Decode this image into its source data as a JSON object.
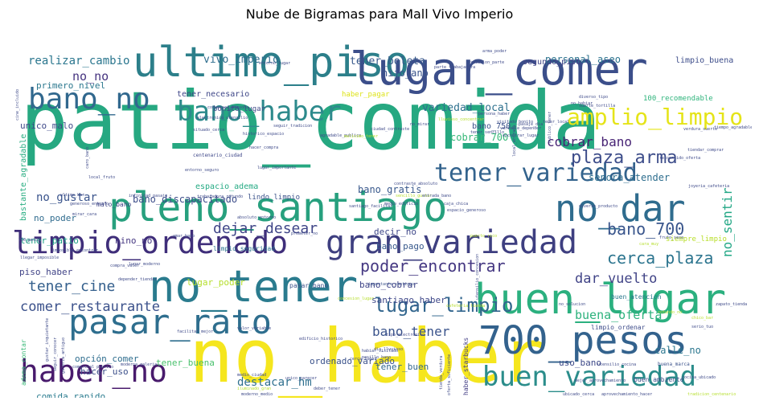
{
  "chart_data": {
    "type": "wordcloud",
    "title": "Nube de Bigramas para Mall Vivo Imperio",
    "colormap": [
      "#440154",
      "#482878",
      "#3e4a89",
      "#31688e",
      "#26828e",
      "#1f9e89",
      "#35b779",
      "#6ece58",
      "#b5de2b",
      "#fde725"
    ],
    "words": [
      {
        "text": "patio_comida",
        "weight": 100,
        "color": "#26a881"
      },
      {
        "text": "no_haber",
        "weight": 85,
        "color": "#f5e61e"
      },
      {
        "text": "lugar_comer",
        "weight": 62,
        "color": "#3b4e8a"
      },
      {
        "text": "ultimo_piso",
        "weight": 58,
        "color": "#2c7f8a"
      },
      {
        "text": "pleno_santiago",
        "weight": 55,
        "color": "#27a07e"
      },
      {
        "text": "no_tener",
        "weight": 55,
        "color": "#2a7b8e"
      },
      {
        "text": "buen_lugar",
        "weight": 52,
        "color": "#2bb07f"
      },
      {
        "text": "700_pesos",
        "weight": 48,
        "color": "#33628d"
      },
      {
        "text": "no_dar",
        "weight": 45,
        "color": "#2f6c8e"
      },
      {
        "text": "pasar_rato",
        "weight": 42,
        "color": "#2e6e8e"
      },
      {
        "text": "limpio_ordenado",
        "weight": 40,
        "color": "#3f2e7a"
      },
      {
        "text": "gran_variedad",
        "weight": 40,
        "color": "#3e3f80"
      },
      {
        "text": "bano_no",
        "weight": 36,
        "color": "#31688e"
      },
      {
        "text": "bano_haber",
        "weight": 36,
        "color": "#2d8a8c"
      },
      {
        "text": "haber_no",
        "weight": 36,
        "color": "#481a6c"
      },
      {
        "text": "buen_variedad",
        "weight": 35,
        "color": "#2b8d8b"
      },
      {
        "text": "tener_variedad",
        "weight": 30,
        "color": "#33638d"
      },
      {
        "text": "amplio_limpio",
        "weight": 28,
        "color": "#e5e419"
      },
      {
        "text": "lugar_limpio",
        "weight": 24,
        "color": "#32668e"
      },
      {
        "text": "plaza_arma",
        "weight": 22,
        "color": "#3d4d8a"
      },
      {
        "text": "bano_700",
        "weight": 20,
        "color": "#39558c"
      },
      {
        "text": "cerca_plaza",
        "weight": 20,
        "color": "#2b748e"
      },
      {
        "text": "poder_encontrar",
        "weight": 20,
        "color": "#453882"
      },
      {
        "text": "dejar_desear",
        "weight": 18,
        "color": "#404688"
      },
      {
        "text": "tener_cine",
        "weight": 18,
        "color": "#35608d"
      },
      {
        "text": "comer_restaurante",
        "weight": 17,
        "color": "#3b518b"
      },
      {
        "text": "dar_vuelto",
        "weight": 17,
        "color": "#414487"
      },
      {
        "text": "bano_tener",
        "weight": 16,
        "color": "#3a538b"
      },
      {
        "text": "cobrar_bano",
        "weight": 16,
        "color": "#482475"
      },
      {
        "text": "no_sentir",
        "weight": 16,
        "color": "#22a785"
      },
      {
        "text": "buena_oferta",
        "weight": 15,
        "color": "#2db27d"
      },
      {
        "text": "no_no",
        "weight": 15,
        "color": "#463480"
      },
      {
        "text": "realizar_cambio",
        "weight": 14,
        "color": "#2a768e"
      },
      {
        "text": "no_gustar",
        "weight": 14,
        "color": "#3a548c"
      },
      {
        "text": "destacar_hm",
        "weight": 14,
        "color": "#2e6f8e"
      },
      {
        "text": "tener_boleta",
        "weight": 13,
        "color": "#38598c"
      },
      {
        "text": "vivo_imperio",
        "weight": 13,
        "color": "#2e6d8e"
      },
      {
        "text": "variedad_local",
        "weight": 13,
        "color": "#2d708e"
      },
      {
        "text": "senora_atender",
        "weight": 12,
        "color": "#2e6e8e"
      },
      {
        "text": "bano_discapacitado",
        "weight": 12,
        "color": "#3d4e8a"
      },
      {
        "text": "bano_gratis",
        "weight": 12,
        "color": "#38588c"
      },
      {
        "text": "personal_aseo",
        "weight": 12,
        "color": "#2c738e"
      },
      {
        "text": "hijo_ano",
        "weight": 12,
        "color": "#3a548c"
      },
      {
        "text": "cobrar_700",
        "weight": 12,
        "color": "#37b878"
      },
      {
        "text": "calle_no",
        "weight": 12,
        "color": "#2a768e"
      },
      {
        "text": "tener_buena",
        "weight": 11,
        "color": "#4ac16d"
      },
      {
        "text": "hacer_uso",
        "weight": 11,
        "color": "#3c4f8a"
      },
      {
        "text": "opción_comer",
        "weight": 11,
        "color": "#2e6d8e"
      },
      {
        "text": "tener_buen",
        "weight": 11,
        "color": "#31678e"
      },
      {
        "text": "ordenado_variado",
        "weight": 11,
        "color": "#3b528b"
      },
      {
        "text": "uso_bano",
        "weight": 11,
        "color": "#3e4a89"
      },
      {
        "text": "nino_no",
        "weight": 11,
        "color": "#453781"
      },
      {
        "text": "decir_no",
        "weight": 11,
        "color": "#3f4889"
      },
      {
        "text": "bano_pago",
        "weight": 11,
        "color": "#38598c"
      },
      {
        "text": "no_poder",
        "weight": 11,
        "color": "#2f6b8e"
      },
      {
        "text": "tener_patio",
        "weight": 11,
        "color": "#1fa187"
      },
      {
        "text": "bano_cobrar",
        "weight": 11,
        "color": "#404588"
      },
      {
        "text": "santiago_haber",
        "weight": 11,
        "color": "#3f4889"
      },
      {
        "text": "piso_haber",
        "weight": 11,
        "color": "#414487"
      },
      {
        "text": "lugar_poder",
        "weight": 11,
        "color": "#b5de2b"
      },
      {
        "text": "comida_rapido",
        "weight": 11,
        "color": "#297b8e"
      },
      {
        "text": "unico_malo",
        "weight": 11,
        "color": "#3e4989"
      },
      {
        "text": "primero_nivel",
        "weight": 11,
        "color": "#2a778e"
      },
      {
        "text": "tener_necesario",
        "weight": 10,
        "color": "#3f4788"
      },
      {
        "text": "bano_750",
        "weight": 10,
        "color": "#3b518b"
      },
      {
        "text": "espacio_adema",
        "weight": 10,
        "color": "#24aa83"
      },
      {
        "text": "bastante_agradable",
        "weight": 10,
        "color": "#27ad81"
      },
      {
        "text": "limpio_buena",
        "weight": 10,
        "color": "#3d4d8a"
      },
      {
        "text": "segundo_piso",
        "weight": 10,
        "color": "#414487"
      },
      {
        "text": "100_recomendable",
        "weight": 9,
        "color": "#2fb47c"
      },
      {
        "text": "haber_pagar",
        "weight": 9,
        "color": "#dde318"
      },
      {
        "text": "bonito_lugar",
        "weight": 9,
        "color": "#3f4889"
      },
      {
        "text": "lindo_limpio",
        "weight": 9,
        "color": "#3b528b"
      },
      {
        "text": "siempre_limpio",
        "weight": 9,
        "color": "#b8de29"
      },
      {
        "text": "buen_atencion",
        "weight": 8,
        "color": "#2a788e"
      },
      {
        "text": "limpio_seguridad",
        "weight": 8,
        "color": "#2c738e"
      },
      {
        "text": "adema_contar",
        "weight": 8,
        "color": "#38b977"
      },
      {
        "text": "buen_ambiente",
        "weight": 8,
        "color": "#3c4f8a"
      },
      {
        "text": "limpio_ordenar",
        "weight": 8,
        "color": "#3e4c8a"
      },
      {
        "text": "haber_starbucks",
        "weight": 8,
        "color": "#433e85"
      },
      {
        "text": "malo_bano",
        "weight": 8,
        "color": "#404688"
      },
      {
        "text": "pasar_bano",
        "weight": 8,
        "color": "#3b528b"
      },
      {
        "text": "buena_marca",
        "weight": 6,
        "color": "#3b528b"
      },
      {
        "text": "centenario_ciudad",
        "weight": 6,
        "color": "#3f4889"
      },
      {
        "text": "edificio_historico",
        "weight": 5,
        "color": "#3f4889"
      },
      {
        "text": "moderna_galeria",
        "weight": 5,
        "color": "#3e4a89"
      },
      {
        "text": "tipo_electronico",
        "weight": 5,
        "color": "#3f4889"
      },
      {
        "text": "valor_variable",
        "weight": 5,
        "color": "#3e4a89"
      },
      {
        "text": "importante_santiago",
        "weight": 5,
        "color": "#3b528b"
      },
      {
        "text": "utensilio_cocina",
        "weight": 5,
        "color": "#3e4a89"
      },
      {
        "text": "mejor_aprovechamiento",
        "weight": 5,
        "color": "#3e4a89"
      },
      {
        "text": "facilitar_mejor",
        "weight": 5,
        "color": "#3e4a89"
      },
      {
        "text": "compra_valor",
        "weight": 5,
        "color": "#3e4a89"
      },
      {
        "text": "depender_tiendar",
        "weight": 5,
        "color": "#3e4a89"
      },
      {
        "text": "contraste_absoluto",
        "weight": 5,
        "color": "#3e4a89"
      },
      {
        "text": "medio_edificio",
        "weight": 5,
        "color": "#3e4a89"
      },
      {
        "text": "absoluto_entorno",
        "weight": 5,
        "color": "#3e4a89"
      },
      {
        "text": "lugar_importante",
        "weight": 5,
        "color": "#3e4a89"
      },
      {
        "text": "hacer_compra",
        "weight": 5,
        "color": "#3e4a89"
      },
      {
        "text": "seguir_tradicion",
        "weight": 5,
        "color": "#3e4a89"
      },
      {
        "text": "ciudad_contraste",
        "weight": 5,
        "color": "#3e4a89"
      },
      {
        "text": "situado_cerca",
        "weight": 5,
        "color": "#3e4a89"
      },
      {
        "text": "pasaje_dia",
        "weight": 5,
        "color": "#3e4a89"
      },
      {
        "text": "verdura_suerte",
        "weight": 5,
        "color": "#3e4a89"
      },
      {
        "text": "variable_depender",
        "weight": 5,
        "color": "#3e4a89"
      },
      {
        "text": "publico_tener",
        "weight": 5,
        "color": "#3e4a89"
      },
      {
        "text": "no_mirar",
        "weight": 5,
        "color": "#3e4a89"
      },
      {
        "text": "no_habiar",
        "weight": 5,
        "color": "#3e4a89"
      },
      {
        "text": "santiago_facilitar",
        "weight": 5,
        "color": "#3e4a89"
      },
      {
        "text": "tiendar_comprar",
        "weight": 5,
        "color": "#3e4a89"
      },
      {
        "text": "reconocido_oferta",
        "weight": 5,
        "color": "#3e4a89"
      },
      {
        "text": "joyeria_cafeteria",
        "weight": 5,
        "color": "#3e4a89"
      },
      {
        "text": "diverso_producto",
        "weight": 5,
        "color": "#3e4a89"
      },
      {
        "text": "trabajadora_rotundo",
        "weight": 5,
        "color": "#3e4a89"
      },
      {
        "text": "pasillo_bano",
        "weight": 5,
        "color": "#3e4a89"
      },
      {
        "text": "cerca_lugar",
        "weight": 5,
        "color": "#3e4a89"
      },
      {
        "text": "dia_lluvioso",
        "weight": 5,
        "color": "#3e4a89"
      },
      {
        "text": "cocina_ubicado",
        "weight": 5,
        "color": "#3e4a89"
      },
      {
        "text": "ubicado_cerca",
        "weight": 5,
        "color": "#3e4a89"
      },
      {
        "text": "aprovechamiento_hacer",
        "weight": 5,
        "color": "#3e4a89"
      },
      {
        "text": "tradicion_centenario",
        "weight": 5,
        "color": "#b5de2b"
      },
      {
        "text": "habiar_visitado",
        "weight": 5,
        "color": "#3e4a89"
      },
      {
        "text": "medio_ciudad",
        "weight": 5,
        "color": "#3e4a89"
      },
      {
        "text": "unico_parecer",
        "weight": 5,
        "color": "#3e4a89"
      },
      {
        "text": "moderno_medio",
        "weight": 5,
        "color": "#3e4a89"
      },
      {
        "text": "oferta_suficiente",
        "weight": 5,
        "color": "#3e4a89"
      },
      {
        "text": "tienda_verdura",
        "weight": 5,
        "color": "#3e4a89"
      },
      {
        "text": "deber_tener",
        "weight": 5,
        "color": "#3e4a89"
      },
      {
        "text": "iluminado_gran",
        "weight": 5,
        "color": "#b5de2b"
      },
      {
        "text": "comercial_publico",
        "weight": 5,
        "color": "#3e4a89"
      },
      {
        "text": "galeria_antiguo",
        "weight": 5,
        "color": "#3e4a89"
      },
      {
        "text": "seguir_conocer",
        "weight": 5,
        "color": "#3e4a89"
      },
      {
        "text": "gustar_inquietante",
        "weight": 5,
        "color": "#3e4a89"
      },
      {
        "text": "llegar_imposible",
        "weight": 5,
        "color": "#3e4a89"
      },
      {
        "text": "imposible_encontrar",
        "weight": 5,
        "color": "#3e4a89"
      },
      {
        "text": "750_pesos",
        "weight": 5,
        "color": "#3e4a89"
      },
      {
        "text": "mirar_cara",
        "weight": 5,
        "color": "#3e4a89"
      },
      {
        "text": "generoso_entorno",
        "weight": 5,
        "color": "#3e4a89"
      },
      {
        "text": "caro_bano",
        "weight": 5,
        "color": "#3e4a89"
      },
      {
        "text": "entorno_seguro",
        "weight": 5,
        "color": "#3e4a89"
      },
      {
        "text": "historico_espacio",
        "weight": 5,
        "color": "#3e4a89"
      },
      {
        "text": "electronico_utensilio",
        "weight": 5,
        "color": "#3e4a89"
      },
      {
        "text": "conversar_persona",
        "weight": 5,
        "color": "#3e4a89"
      },
      {
        "text": "entorno_lugar",
        "weight": 5,
        "color": "#3e4a89"
      },
      {
        "text": "no_solucion",
        "weight": 5,
        "color": "#3e4a89"
      },
      {
        "text": "lluvioso_concentrar",
        "weight": 5,
        "color": "#b5de2b"
      },
      {
        "text": "persona_haber",
        "weight": 5,
        "color": "#3e4a89"
      },
      {
        "text": "cine_incluido",
        "weight": 5,
        "color": "#3e4a89"
      },
      {
        "text": "diverso_tipo",
        "weight": 5,
        "color": "#3e4a89"
      },
      {
        "text": "suerte_tortilla",
        "weight": 5,
        "color": "#3e4a89"
      },
      {
        "text": "solucion_parte",
        "weight": 5,
        "color": "#3e4a89"
      },
      {
        "text": "arma_poder",
        "weight": 5,
        "color": "#3e4a89"
      },
      {
        "text": "parte_trabajadora",
        "weight": 5,
        "color": "#3e4a89"
      },
      {
        "text": "visitado_bonito",
        "weight": 5,
        "color": "#3e4a89"
      },
      {
        "text": "encontrar_lugar",
        "weight": 5,
        "color": "#3e4a89"
      },
      {
        "text": "tener_sencillo",
        "weight": 5,
        "color": "#3e4a89"
      },
      {
        "text": "agradable_publico",
        "weight": 5,
        "color": "#3e4a89"
      },
      {
        "text": "tener_local",
        "weight": 5,
        "color": "#3e4a89"
      },
      {
        "text": "malisimo_tener",
        "weight": 5,
        "color": "#b5de2b"
      },
      {
        "text": "infinidad_pasaje",
        "weight": 5,
        "color": "#3e4a89"
      },
      {
        "text": "local_entrada",
        "weight": 5,
        "color": "#3e4a89"
      },
      {
        "text": "caja_chica",
        "weight": 5,
        "color": "#3e4a89"
      },
      {
        "text": "espacio_generoso",
        "weight": 5,
        "color": "#3e4a89"
      },
      {
        "text": "sencillo_gustar",
        "weight": 5,
        "color": "#b5de2b"
      },
      {
        "text": "entrada_bano",
        "weight": 5,
        "color": "#3e4a89"
      },
      {
        "text": "fruto_seco",
        "weight": 5,
        "color": "#3e4a89"
      },
      {
        "text": "ultimo_bar",
        "weight": 5,
        "color": "#3e4a89"
      },
      {
        "text": "local_fruto",
        "weight": 5,
        "color": "#3e4a89"
      },
      {
        "text": "zapato_tienda",
        "weight": 5,
        "color": "#3e4a89"
      },
      {
        "text": "amar_bano",
        "weight": 5,
        "color": "#3e4a89"
      },
      {
        "text": "prometer_no",
        "weight": 5,
        "color": "#3e4a89"
      },
      {
        "text": "cara_muy",
        "weight": 5,
        "color": "#b5de2b"
      },
      {
        "text": "puerto_rico",
        "weight": 5,
        "color": "#b5de2b"
      },
      {
        "text": "chico_bar",
        "weight": 5,
        "color": "#b5de2b"
      },
      {
        "text": "serio_tuo",
        "weight": 5,
        "color": "#3e4a89"
      },
      {
        "text": "rotundo_no",
        "weight": 5,
        "color": "#b5de2b"
      },
      {
        "text": "lugar_moderno",
        "weight": 5,
        "color": "#3e4a89"
      },
      {
        "text": "cafeteria_tienda",
        "weight": 5,
        "color": "#b5de2b"
      },
      {
        "text": "concesion_lugar",
        "weight": 5,
        "color": "#b5de2b"
      },
      {
        "text": "utensilio_concesion",
        "weight": 5,
        "color": "#3e4a89"
      },
      {
        "text": "tiempo_agradable",
        "weight": 5,
        "color": "#3e4a89"
      },
      {
        "text": "pagar_bano",
        "weight": 5,
        "color": "#3e4a89"
      },
      {
        "text": "conocer_parecer",
        "weight": 5,
        "color": "#b5de2b"
      },
      {
        "text": "fino_haber",
        "weight": 5,
        "color": "#3e4a89"
      },
      {
        "text": "producto_moderna",
        "weight": 5,
        "color": "#3e4a89"
      },
      {
        "text": "verdura_suerte",
        "weight": 5,
        "color": "#b5de2b"
      }
    ]
  }
}
